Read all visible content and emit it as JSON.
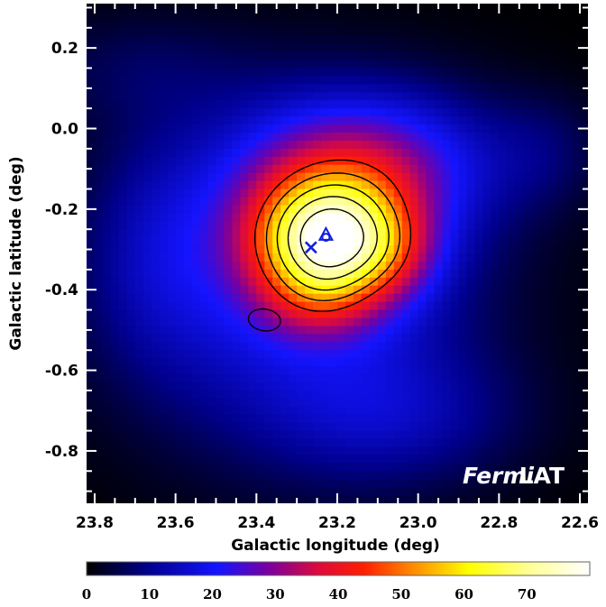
{
  "chart_data": {
    "type": "heatmap",
    "title": "",
    "xlabel": "Galactic longitude (deg)",
    "ylabel": "Galactic latitude (deg)",
    "xlim": [
      23.82,
      22.58
    ],
    "ylim": [
      -0.93,
      0.31
    ],
    "x_reversed": true,
    "x_ticks": [
      23.8,
      23.6,
      23.4,
      23.2,
      23.0,
      22.8,
      22.6
    ],
    "x_tick_labels": [
      "23.8",
      "23.6",
      "23.4",
      "23.2",
      "23.0",
      "22.8",
      "22.6"
    ],
    "y_ticks": [
      0.2,
      0.0,
      -0.2,
      -0.4,
      -0.6,
      -0.8
    ],
    "y_tick_labels": [
      "0.2",
      "0.0",
      "-0.2",
      "-0.4",
      "-0.6",
      "-0.8"
    ],
    "colorbar": {
      "min": 0,
      "max": 80,
      "ticks": [
        0,
        10,
        20,
        30,
        40,
        50,
        60,
        70
      ],
      "tick_labels": [
        "0",
        "10",
        "20",
        "30",
        "40",
        "50",
        "60",
        "70"
      ],
      "colors": [
        "#000000",
        "#0000ff",
        "#d00030",
        "#ff2000",
        "#ffff00",
        "#ffffff"
      ]
    },
    "components": [
      {
        "l": 23.22,
        "b": -0.28,
        "sigma_l": 0.13,
        "sigma_b": 0.11,
        "amp": 58
      },
      {
        "l": 23.05,
        "b": -0.31,
        "sigma_l": 0.08,
        "sigma_b": 0.08,
        "amp": 8
      },
      {
        "l": 23.25,
        "b": -0.43,
        "sigma_l": 0.1,
        "sigma_b": 0.07,
        "amp": 8
      },
      {
        "l": 23.13,
        "b": -0.09,
        "sigma_l": 0.22,
        "sigma_b": 0.13,
        "amp": 24
      },
      {
        "l": 23.3,
        "b": -0.38,
        "sigma_l": 0.3,
        "sigma_b": 0.28,
        "amp": 20
      },
      {
        "l": 23.05,
        "b": -0.72,
        "sigma_l": 0.22,
        "sigma_b": 0.12,
        "amp": 9
      },
      {
        "l": 23.65,
        "b": -0.3,
        "sigma_l": 0.12,
        "sigma_b": 0.2,
        "amp": 7
      },
      {
        "l": 23.7,
        "b": 0.15,
        "sigma_l": 0.2,
        "sigma_b": 0.1,
        "amp": 5
      },
      {
        "l": 22.68,
        "b": -0.05,
        "sigma_l": 0.1,
        "sigma_b": 0.1,
        "amp": 5
      }
    ],
    "contour_levels": [
      44,
      52,
      60,
      68,
      76
    ],
    "extra_contour": {
      "l": 23.38,
      "b": -0.475,
      "rl": 0.04,
      "rb": 0.027
    },
    "markers": [
      {
        "symbol": "x",
        "l": 23.265,
        "b": -0.295,
        "color": "#1020e0"
      },
      {
        "symbol": "triangle",
        "l": 23.228,
        "b": -0.265,
        "color": "#1020e0"
      },
      {
        "symbol": "circle",
        "l": 23.228,
        "b": -0.27,
        "color": "#1020e0"
      }
    ],
    "watermark": {
      "italic": "Fermi",
      "rest": "LAT"
    }
  }
}
